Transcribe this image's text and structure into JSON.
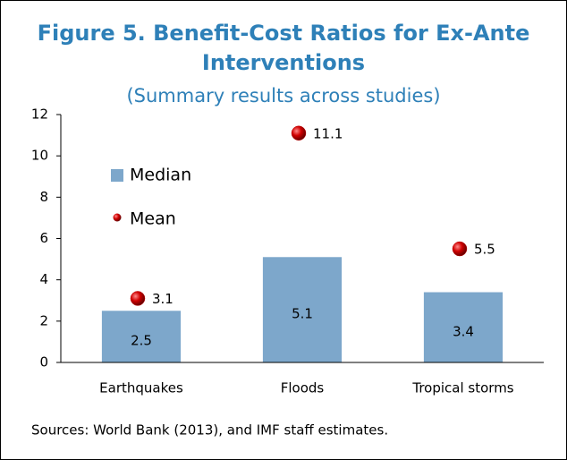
{
  "chart_data": {
    "type": "bar",
    "title_lines": [
      "Figure 5. Benefit-Cost Ratios for Ex-Ante",
      "Interventions"
    ],
    "subtitle": "(Summary results across studies)",
    "categories": [
      "Earthquakes",
      "Floods",
      "Tropical storms"
    ],
    "series": [
      {
        "name": "Median",
        "color": "#7da7cb",
        "mark": "bar",
        "values": [
          2.5,
          5.1,
          3.4
        ]
      },
      {
        "name": "Mean",
        "color": "#c00000",
        "mark": "point",
        "values": [
          3.1,
          11.1,
          5.5
        ]
      }
    ],
    "ylim": [
      0,
      12
    ],
    "yticks": [
      0,
      2,
      4,
      6,
      8,
      10,
      12
    ],
    "legend": "upper left",
    "note": "Sources: World Bank (2013), and IMF staff estimates."
  }
}
